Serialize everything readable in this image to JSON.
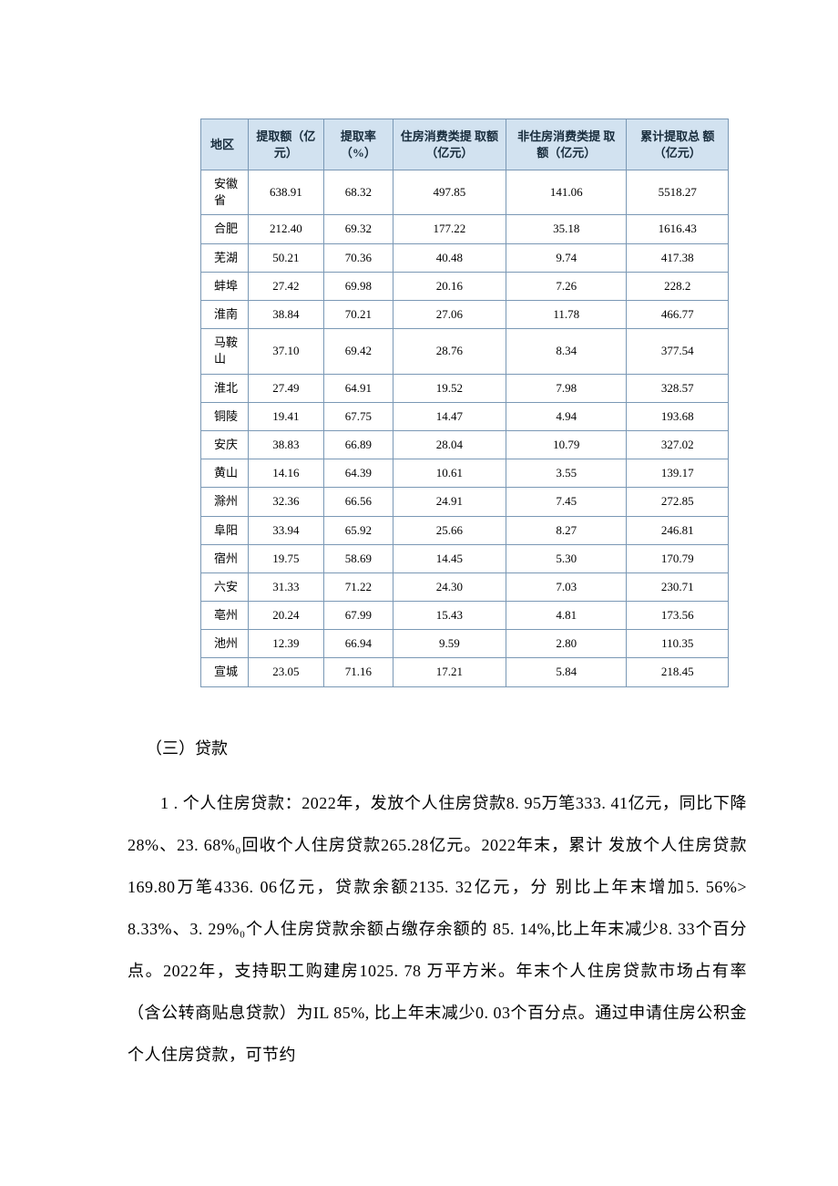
{
  "table": {
    "header_bg": "#d2e2f0",
    "header_color": "#182c3c",
    "border_color": "#7a98b5",
    "font_size": 13,
    "columns": [
      "地区",
      "提取额（亿元）",
      "提取率（%）",
      "住房消费类提 取额（亿元）",
      "非住房消费类提 取额（亿元）",
      "累计提取总 额（亿元）"
    ],
    "rows": [
      [
        "安徽省",
        "638.91",
        "68.32",
        "497.85",
        "141.06",
        "5518.27"
      ],
      [
        "合肥",
        "212.40",
        "69.32",
        "177.22",
        "35.18",
        "1616.43"
      ],
      [
        "芜湖",
        "50.21",
        "70.36",
        "40.48",
        "9.74",
        "417.38"
      ],
      [
        "蚌埠",
        "27.42",
        "69.98",
        "20.16",
        "7.26",
        "228.2"
      ],
      [
        "淮南",
        "38.84",
        "70.21",
        "27.06",
        "11.78",
        "466.77"
      ],
      [
        "马鞍山",
        "37.10",
        "69.42",
        "28.76",
        "8.34",
        "377.54"
      ],
      [
        "淮北",
        "27.49",
        "64.91",
        "19.52",
        "7.98",
        "328.57"
      ],
      [
        "铜陵",
        "19.41",
        "67.75",
        "14.47",
        "4.94",
        "193.68"
      ],
      [
        "安庆",
        "38.83",
        "66.89",
        "28.04",
        "10.79",
        "327.02"
      ],
      [
        "黄山",
        "14.16",
        "64.39",
        "10.61",
        "3.55",
        "139.17"
      ],
      [
        "滁州",
        "32.36",
        "66.56",
        "24.91",
        "7.45",
        "272.85"
      ],
      [
        "阜阳",
        "33.94",
        "65.92",
        "25.66",
        "8.27",
        "246.81"
      ],
      [
        "宿州",
        "19.75",
        "58.69",
        "14.45",
        "5.30",
        "170.79"
      ],
      [
        "六安",
        "31.33",
        "71.22",
        "24.30",
        "7.03",
        "230.71"
      ],
      [
        "亳州",
        "20.24",
        "67.99",
        "15.43",
        "4.81",
        "173.56"
      ],
      [
        "池州",
        "12.39",
        "66.94",
        "9.59",
        "2.80",
        "110.35"
      ],
      [
        "宣城",
        "23.05",
        "71.16",
        "17.21",
        "5.84",
        "218.45"
      ]
    ]
  },
  "section": {
    "heading": "（三）贷款",
    "body": "1 . 个人住房贷款：2022年，发放个人住房贷款8. 95万笔333. 41亿元，同比下降28%、23. 68%₀回收个人住房贷款265.28亿元。2022年末，累计 发放个人住房贷款169.80万笔4336. 06亿元，贷款余额2135. 32亿元，分 别比上年末增加5. 56%> 8.33%、3. 29%₀个人住房贷款余额占缴存余额的 85. 14%,比上年末减少8. 33个百分点。2022年，支持职工购建房1025. 78 万平方米。年末个人住房贷款市场占有率（含公转商贴息贷款）为IL 85%, 比上年末减少0. 03个百分点。通过申请住房公积金个人住房贷款，可节约"
  }
}
